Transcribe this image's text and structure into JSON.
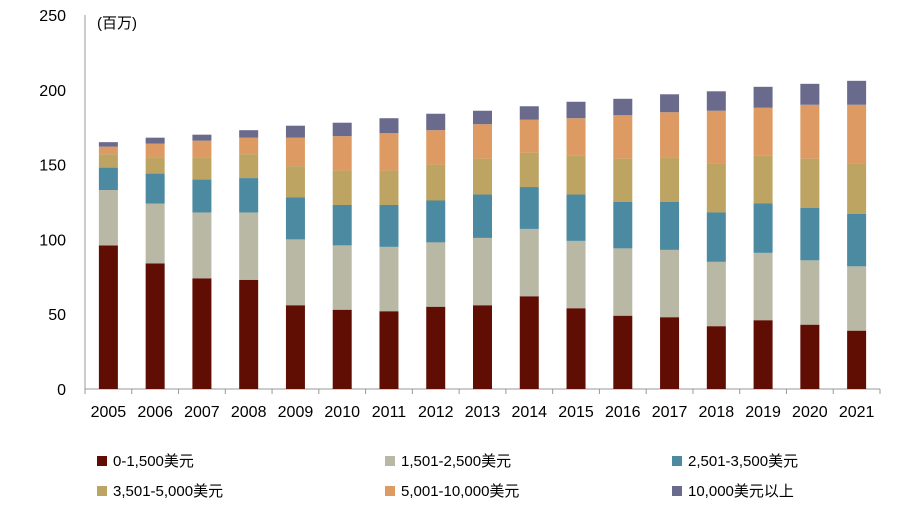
{
  "chart_data": {
    "type": "bar",
    "stacked": true,
    "unit_label": "(百万)",
    "categories": [
      "2005",
      "2006",
      "2007",
      "2008",
      "2009",
      "2010",
      "2011",
      "2012",
      "2013",
      "2014",
      "2015",
      "2016",
      "2017",
      "2018",
      "2019",
      "2020",
      "2021"
    ],
    "ylim": [
      0,
      250
    ],
    "yticks": [
      0,
      50,
      100,
      150,
      200,
      250
    ],
    "legend_position": "bottom",
    "series": [
      {
        "name": "0-1,500美元",
        "color": "#600d04",
        "values": [
          96,
          84,
          74,
          73,
          56,
          53,
          52,
          55,
          56,
          62,
          54,
          49,
          48,
          42,
          46,
          43,
          39
        ]
      },
      {
        "name": "1,501-2,500美元",
        "color": "#b9b8a5",
        "values": [
          37,
          40,
          44,
          45,
          44,
          43,
          43,
          43,
          45,
          45,
          45,
          45,
          45,
          43,
          45,
          43,
          43
        ]
      },
      {
        "name": "2,501-3,500美元",
        "color": "#4b8aa0",
        "values": [
          15,
          20,
          22,
          23,
          28,
          27,
          28,
          28,
          29,
          28,
          31,
          31,
          32,
          33,
          33,
          35,
          35
        ]
      },
      {
        "name": "3,501-5,000美元",
        "color": "#bea462",
        "values": [
          9,
          11,
          15,
          16,
          21,
          23,
          23,
          24,
          24,
          23,
          26,
          29,
          30,
          33,
          32,
          33,
          34
        ]
      },
      {
        "name": "5,001-10,000美元",
        "color": "#de9a63",
        "values": [
          5,
          9,
          11,
          11,
          19,
          23,
          25,
          23,
          23,
          22,
          25,
          29,
          30,
          35,
          32,
          36,
          39
        ]
      },
      {
        "name": "10,000美元以上",
        "color": "#6a6a8c",
        "values": [
          3,
          4,
          4,
          5,
          8,
          9,
          10,
          11,
          9,
          9,
          11,
          11,
          12,
          13,
          14,
          14,
          16
        ]
      }
    ]
  }
}
